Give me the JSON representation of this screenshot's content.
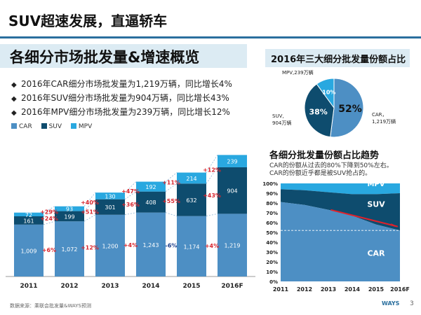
{
  "slide_title": "SUV超速发展，直逼轿车",
  "section_title": "各细分市场批发量&增速概览",
  "bullets": [
    "2016年CAR细分市场批发量为1,219万辆，同比增长4%",
    "2016年SUV细分市场批发量为904万辆，同比增长43%",
    "2016年MPV细分市场批发量为239万辆，同比增长12%"
  ],
  "bullet_marker": "◆",
  "pie_title": "2016年三大细分批发量份额占比",
  "trend_title": "各细分批发量份额占比趋势",
  "trend_subtitle": [
    "CAR的份额从过去的80%下降到50%左右。",
    "CAR的份额近乎都是被SUV抢占的。"
  ],
  "footer": "数据来源：乘联会批发量&WAYS预测",
  "brand": "WAYS",
  "page_number": "3",
  "colors": {
    "car": "#4d8fc4",
    "suv": "#0e4c6e",
    "mpv": "#29a8e0",
    "growth": "#d9262e",
    "neg": "#1c3f8c",
    "accent": "#2a6f9e"
  },
  "chart_data": [
    {
      "type": "bar",
      "stacked": true,
      "categories": [
        "2011",
        "2012",
        "2013",
        "2014",
        "2015",
        "2016F"
      ],
      "series": [
        {
          "name": "CAR",
          "values": [
            1009,
            1072,
            1200,
            1243,
            1174,
            1219
          ],
          "labels": [
            "1,009",
            "1,072",
            "1,200",
            "1,243",
            "1,174",
            "1,219"
          ]
        },
        {
          "name": "SUV",
          "values": [
            161,
            199,
            301,
            408,
            632,
            904
          ],
          "labels": [
            "161",
            "199",
            "301",
            "408",
            "632",
            "904"
          ]
        },
        {
          "name": "MPV",
          "values": [
            72,
            93,
            130,
            192,
            214,
            239
          ],
          "labels": [
            "72",
            "93",
            "130",
            "192",
            "214",
            "239"
          ]
        }
      ],
      "growth_labels": {
        "CAR": [
          "+6%",
          "+12%",
          "+4%",
          "-6%",
          "+4%"
        ],
        "SUV": [
          "+24%",
          "+51%",
          "+36%",
          "+55%",
          "+43%"
        ],
        "MPV": [
          "+29%",
          "+40%",
          "+47%",
          "+11%",
          "+12%"
        ]
      },
      "legend": [
        "CAR",
        "SUV",
        "MPV"
      ],
      "ylim": [
        0,
        2400
      ]
    },
    {
      "type": "pie",
      "title": "2016年三大细分批发量份额占比",
      "slices": [
        {
          "name": "CAR",
          "value": 52,
          "label": "52%",
          "outer_label": [
            "CAR，",
            "1,219万辆"
          ]
        },
        {
          "name": "SUV",
          "value": 38,
          "label": "38%",
          "outer_label": [
            "SUV,",
            "904万辆"
          ]
        },
        {
          "name": "MPV",
          "value": 10,
          "label": "10%",
          "outer_label": [
            "MPV,239万辆"
          ]
        }
      ]
    },
    {
      "type": "area",
      "title": "各细分批发量份额占比趋势",
      "x": [
        "2011",
        "2012",
        "2013",
        "2014",
        "2015",
        "2016F"
      ],
      "yticks": [
        "0%",
        "10%",
        "20%",
        "30%",
        "40%",
        "50%",
        "60%",
        "70%",
        "80%",
        "90%",
        "100%"
      ],
      "series": [
        {
          "name": "CAR",
          "values": [
            81,
            78,
            73,
            67,
            58,
            52
          ]
        },
        {
          "name": "SUV",
          "values": [
            13,
            15,
            18,
            22,
            31,
            38
          ]
        },
        {
          "name": "MPV",
          "values": [
            6,
            7,
            9,
            11,
            11,
            10
          ]
        }
      ],
      "area_labels": [
        "MPV",
        "SUV",
        "CAR"
      ],
      "ylim": [
        0,
        100
      ]
    }
  ]
}
